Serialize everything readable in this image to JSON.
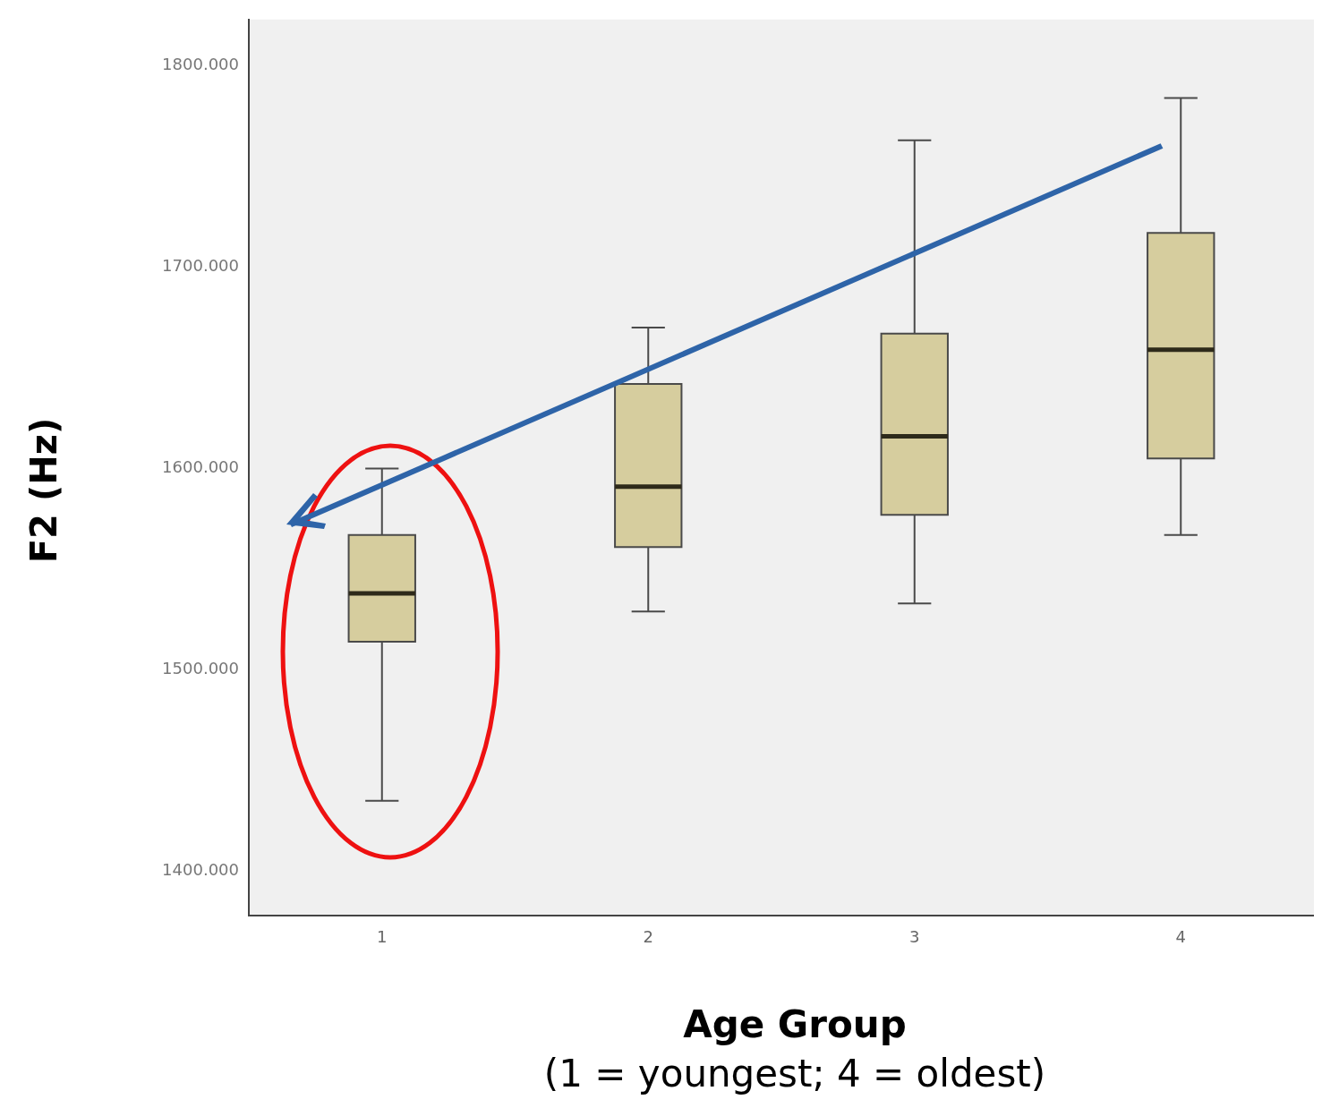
{
  "chart_data": {
    "type": "box",
    "xlabel": "Age Group\n(1 = youngest; 4 = oldest)",
    "ylabel": "F2 (Hz)",
    "categories": [
      "1",
      "2",
      "3",
      "4"
    ],
    "series": [
      {
        "color": "#d6cd9e",
        "boxes": [
          {
            "low": 1435,
            "q1": 1514,
            "median": 1538,
            "q3": 1567,
            "high": 1600
          },
          {
            "low": 1529,
            "q1": 1561,
            "median": 1591,
            "q3": 1642,
            "high": 1670
          },
          {
            "low": 1533,
            "q1": 1577,
            "median": 1616,
            "q3": 1667,
            "high": 1763
          },
          {
            "low": 1567,
            "q1": 1605,
            "median": 1659,
            "q3": 1717,
            "high": 1784
          }
        ]
      }
    ],
    "ylim": [
      1378,
      1823
    ],
    "yticks": [
      {
        "value": 1400,
        "label": "1400.000"
      },
      {
        "value": 1500,
        "label": "1500.000"
      },
      {
        "value": 1600,
        "label": "1600.000"
      },
      {
        "value": 1700,
        "label": "1700.000"
      },
      {
        "value": 1800,
        "label": "1800.000"
      }
    ],
    "grid": false,
    "legend": false
  }
}
